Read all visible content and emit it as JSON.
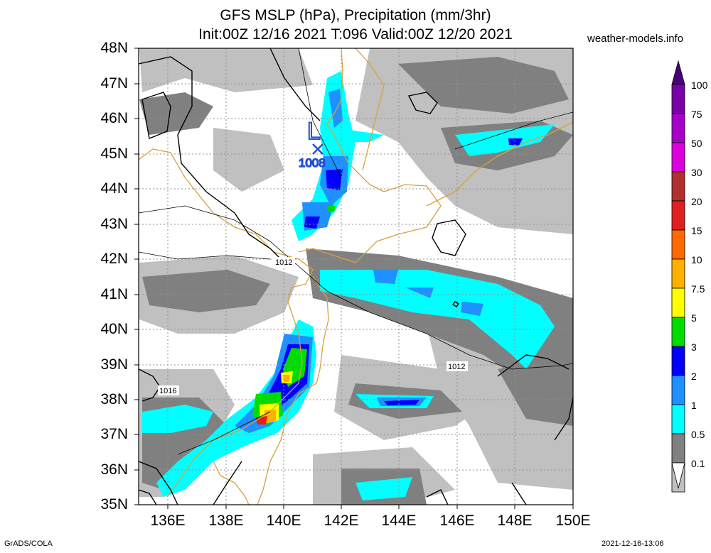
{
  "title_line1": "GFS MSLP (hPa), Precipitation (mm/3hr)",
  "title_line2": "Init:00Z 12/16 2021 T:096 Valid:00Z 12/20 2021",
  "site": "weather-models.info",
  "footer_left": "GrADS/COLA",
  "footer_right": "2021-12-16-13:06",
  "lat_labels": [
    "48N",
    "47N",
    "46N",
    "45N",
    "44N",
    "43N",
    "42N",
    "41N",
    "40N",
    "39N",
    "38N",
    "37N",
    "36N",
    "35N"
  ],
  "lon_labels": [
    "136E",
    "138E",
    "140E",
    "142E",
    "144E",
    "146E",
    "148E",
    "150E"
  ],
  "low_center": {
    "symbol": "L",
    "value": "1008"
  },
  "isobar_labels": [
    "1012",
    "1012",
    "1016"
  ],
  "colorbar": {
    "labels": [
      "100",
      "75",
      "50",
      "30",
      "20",
      "15",
      "10",
      "7.5",
      "5",
      "3",
      "2",
      "1",
      "0.5",
      "0.1"
    ],
    "colors": [
      "#7a00a8",
      "#a800c8",
      "#dc00dc",
      "#b03030",
      "#e02020",
      "#ff6a00",
      "#ffb000",
      "#ffff00",
      "#00dc00",
      "#0000ff",
      "#1e90ff",
      "#00ffff",
      "#808080",
      "#c0c0c0"
    ]
  }
}
